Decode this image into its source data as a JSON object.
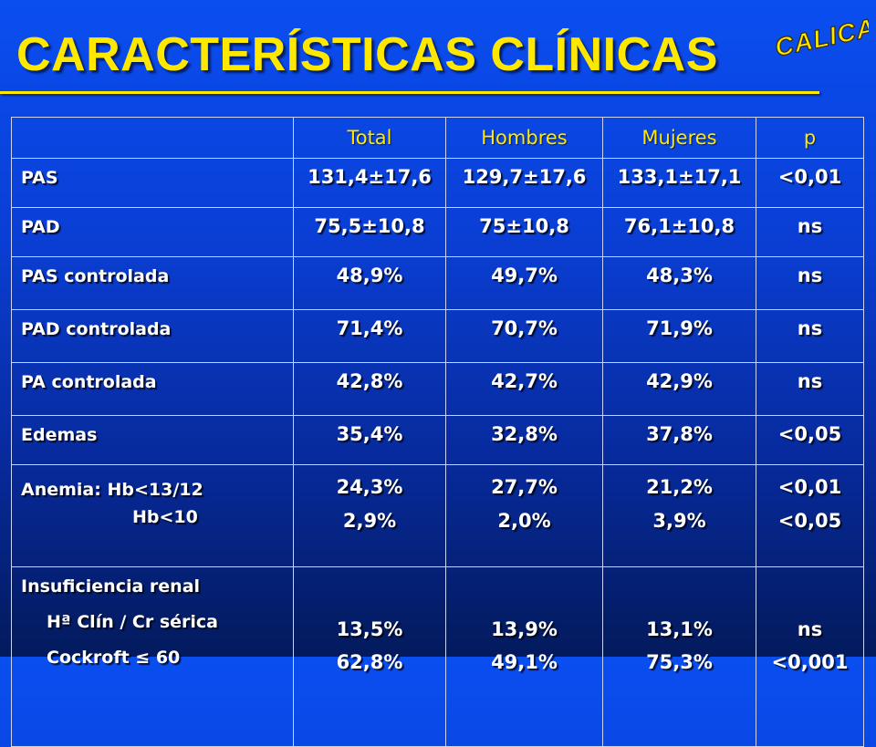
{
  "slide": {
    "title": "CARACTERÍSTICAS CLÍNICAS",
    "logo_text": "CALICAP",
    "colors": {
      "title": "#ffe800",
      "header": "#ffe800",
      "text": "#ffffff",
      "border": "#c8d4ff"
    }
  },
  "table": {
    "headers": [
      "",
      "Total",
      "Hombres",
      "Mujeres",
      "p"
    ],
    "rows": [
      {
        "label": "PAS",
        "total": "131,4±17,6",
        "hombres": "129,7±17,6",
        "mujeres": "133,1±17,1",
        "p": "<0,01"
      },
      {
        "label": "PAD",
        "total": "75,5±10,8",
        "hombres": "75±10,8",
        "mujeres": "76,1±10,8",
        "p": "ns"
      },
      {
        "label": "PAS controlada",
        "total": "48,9%",
        "hombres": "49,7%",
        "mujeres": "48,3%",
        "p": "ns"
      },
      {
        "label": "PAD controlada",
        "total": "71,4%",
        "hombres": "70,7%",
        "mujeres": "71,9%",
        "p": "ns"
      },
      {
        "label": "PA controlada",
        "total": "42,8%",
        "hombres": "42,7%",
        "mujeres": "42,9%",
        "p": "ns"
      },
      {
        "label": "Edemas",
        "total": "35,4%",
        "hombres": "32,8%",
        "mujeres": "37,8%",
        "p": "<0,05"
      }
    ],
    "anemia": {
      "label_1": "Anemia:  Hb<13/12",
      "label_2": "Hb<10",
      "total": [
        "24,3%",
        "2,9%"
      ],
      "hombres": [
        "27,7%",
        "2,0%"
      ],
      "mujeres": [
        "21,2%",
        "3,9%"
      ],
      "p": [
        "<0,01",
        "<0,05"
      ]
    },
    "renal": {
      "label_1": "Insuficiencia renal",
      "label_2": "Hª Clín / Cr sérica",
      "label_3": "Cockroft ≤ 60",
      "total": [
        "13,5%",
        "62,8%"
      ],
      "hombres": [
        "13,9%",
        "49,1%"
      ],
      "mujeres": [
        "13,1%",
        "75,3%"
      ],
      "p": [
        "ns",
        "<0,001"
      ]
    }
  }
}
